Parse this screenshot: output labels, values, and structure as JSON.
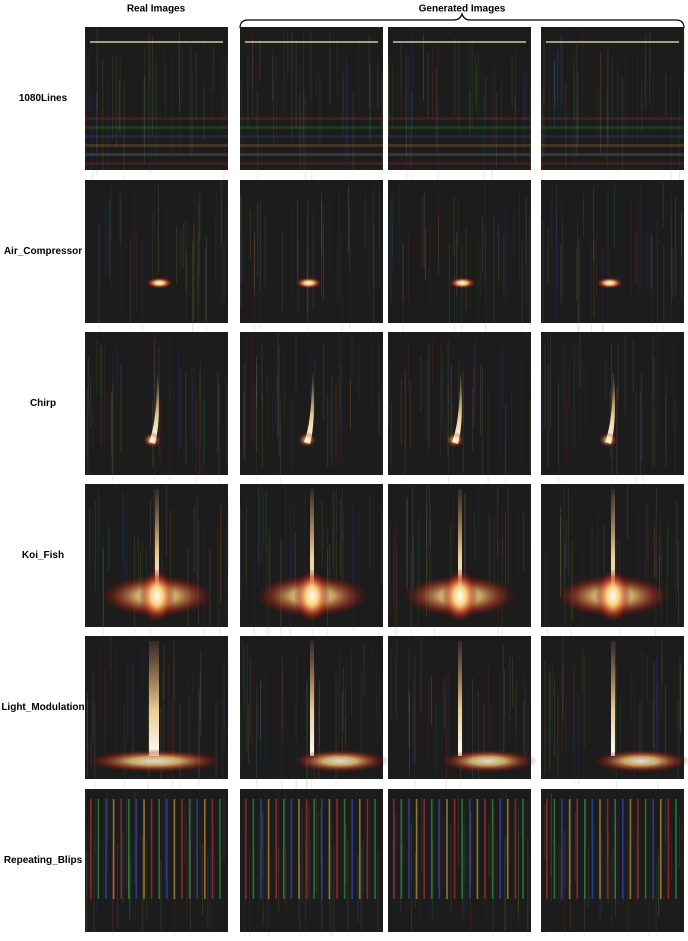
{
  "header": {
    "real": "Real Images",
    "generated": "Generated Images"
  },
  "rows": [
    {
      "label": "1080Lines"
    },
    {
      "label": "Air_Compressor"
    },
    {
      "label": "Chirp"
    },
    {
      "label": "Koi_Fish"
    },
    {
      "label": "Light_Modulation"
    },
    {
      "label": "Repeating_Blips"
    }
  ]
}
